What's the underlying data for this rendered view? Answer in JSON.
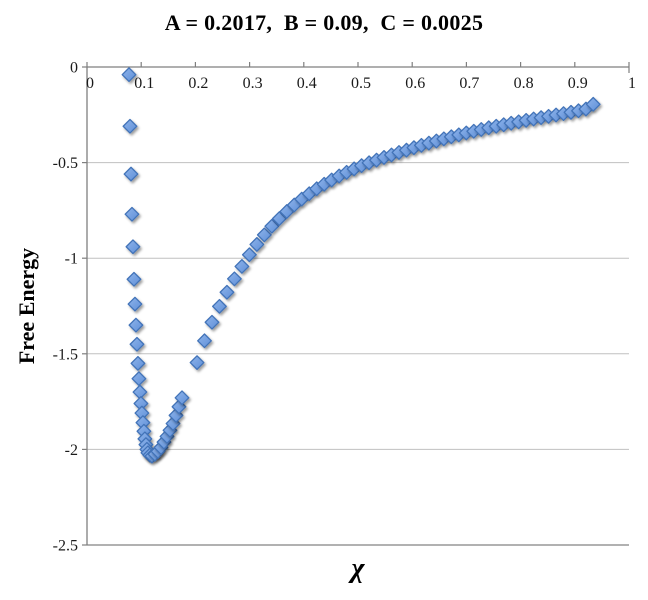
{
  "chart_data": {
    "type": "scatter",
    "title": "A = 0.2017,  B = 0.09,  C = 0.0025",
    "xlabel": "χ",
    "ylabel": "Free Energy",
    "xlim": [
      0,
      1
    ],
    "ylim": [
      -2.5,
      0
    ],
    "grid": "horizontal",
    "legend": "none",
    "x_tick_labels": [
      "0",
      "0.1",
      "0.2",
      "0.3",
      "0.4",
      "0.5",
      "0.6",
      "0.7",
      "0.8",
      "0.9",
      "1"
    ],
    "x_ticks": [
      0,
      0.1,
      0.2,
      0.3,
      0.4,
      0.5,
      0.6,
      0.7,
      0.8,
      0.9,
      1
    ],
    "y_tick_labels": [
      "0",
      "-0.5",
      "-1",
      "-1.5",
      "-2",
      "-2.5"
    ],
    "y_ticks": [
      0,
      -0.5,
      -1,
      -1.5,
      -2,
      -2.5
    ],
    "colors": {
      "marker_fill_light": "#8FB4EA",
      "marker_fill_dark": "#5E8FD8",
      "marker_stroke": "#4273B8",
      "gridline": "#C0C0C0",
      "bottom_line": "#A6A6A6",
      "axis": "#7F7F7F",
      "text": "#000000",
      "background": "#FFFFFF"
    },
    "series": [
      {
        "name": "Free Energy",
        "marker": "diamond",
        "points": [
          [
            0.0775,
            -0.04
          ],
          [
            0.0793,
            -0.31
          ],
          [
            0.0812,
            -0.56
          ],
          [
            0.083,
            -0.77
          ],
          [
            0.0848,
            -0.94
          ],
          [
            0.0867,
            -1.11
          ],
          [
            0.0885,
            -1.24
          ],
          [
            0.0903,
            -1.35
          ],
          [
            0.0922,
            -1.45
          ],
          [
            0.094,
            -1.55
          ],
          [
            0.0958,
            -1.63
          ],
          [
            0.0977,
            -1.7
          ],
          [
            0.0995,
            -1.76
          ],
          [
            0.1013,
            -1.81
          ],
          [
            0.1032,
            -1.86
          ],
          [
            0.105,
            -1.905
          ],
          [
            0.1068,
            -1.945
          ],
          [
            0.1087,
            -1.975
          ],
          [
            0.1105,
            -2.0
          ],
          [
            0.1124,
            -2.018
          ],
          [
            0.116,
            -2.03
          ],
          [
            0.1199,
            -2.035
          ],
          [
            0.1254,
            -2.025
          ],
          [
            0.131,
            -2.01
          ],
          [
            0.1365,
            -1.99
          ],
          [
            0.142,
            -1.962
          ],
          [
            0.1476,
            -1.932
          ],
          [
            0.1531,
            -1.9
          ],
          [
            0.1587,
            -1.865
          ],
          [
            0.1642,
            -1.822
          ],
          [
            0.1697,
            -1.777
          ],
          [
            0.1753,
            -1.73
          ],
          [
            0.203,
            -1.546
          ],
          [
            0.2168,
            -1.432
          ],
          [
            0.2306,
            -1.335
          ],
          [
            0.2444,
            -1.252
          ],
          [
            0.2582,
            -1.178
          ],
          [
            0.272,
            -1.108
          ],
          [
            0.2858,
            -1.043
          ],
          [
            0.2996,
            -0.982
          ],
          [
            0.3134,
            -0.928
          ],
          [
            0.3272,
            -0.878
          ],
          [
            0.341,
            -0.833
          ],
          [
            0.3548,
            -0.793
          ],
          [
            0.3686,
            -0.756
          ],
          [
            0.3824,
            -0.722
          ],
          [
            0.3962,
            -0.691
          ],
          [
            0.41,
            -0.663
          ],
          [
            0.4238,
            -0.637
          ],
          [
            0.4376,
            -0.613
          ],
          [
            0.4514,
            -0.591
          ],
          [
            0.4652,
            -0.57
          ],
          [
            0.479,
            -0.551
          ],
          [
            0.4928,
            -0.533
          ],
          [
            0.5066,
            -0.516
          ],
          [
            0.5204,
            -0.501
          ],
          [
            0.5342,
            -0.487
          ],
          [
            0.548,
            -0.473
          ],
          [
            0.5618,
            -0.46
          ],
          [
            0.5756,
            -0.447
          ],
          [
            0.5894,
            -0.435
          ],
          [
            0.6032,
            -0.422
          ],
          [
            0.617,
            -0.41
          ],
          [
            0.6308,
            -0.398
          ],
          [
            0.6446,
            -0.387
          ],
          [
            0.6584,
            -0.376
          ],
          [
            0.6722,
            -0.365
          ],
          [
            0.686,
            -0.355
          ],
          [
            0.6998,
            -0.345
          ],
          [
            0.7136,
            -0.336
          ],
          [
            0.7274,
            -0.327
          ],
          [
            0.7412,
            -0.318
          ],
          [
            0.755,
            -0.31
          ],
          [
            0.7688,
            -0.302
          ],
          [
            0.7826,
            -0.294
          ],
          [
            0.7964,
            -0.287
          ],
          [
            0.8102,
            -0.279
          ],
          [
            0.824,
            -0.272
          ],
          [
            0.8378,
            -0.265
          ],
          [
            0.8516,
            -0.258
          ],
          [
            0.8654,
            -0.251
          ],
          [
            0.8792,
            -0.244
          ],
          [
            0.893,
            -0.237
          ],
          [
            0.9068,
            -0.229
          ],
          [
            0.9206,
            -0.22
          ],
          [
            0.934,
            -0.195
          ]
        ]
      }
    ]
  }
}
